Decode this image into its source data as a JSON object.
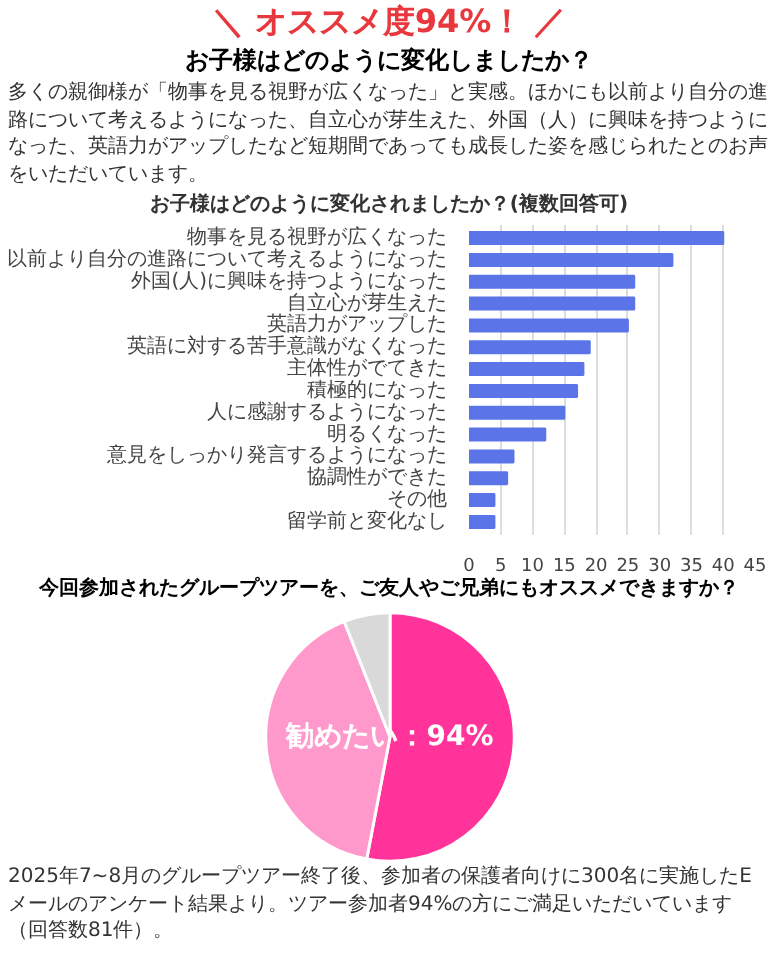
{
  "chart_data": [
    {
      "type": "bar",
      "orientation": "horizontal",
      "title": "お子様はどのように変化されましたか？(複数回答可)",
      "annotations": [
        "＼ オススメ度94%！ ／",
        "お子様はどのように変化しましたか？",
        "多くの親御様が「物事を見る視野が広くなった」と実感。ほかにも以前より自分の進路について考えるようになった、自立心が芽生えた、外国（人）に興味を持つようになった、英語力がアップしたなど短期間であっても成長した姿を感じられたとのお声をいただいています。"
      ],
      "categories": [
        "物事を見る視野が広くなった",
        "以前より自分の進路について考えるようになった",
        "外国(人)に興味を持つようになった",
        "自立心が芽生えた",
        "英語力がアップした",
        "英語に対する苦手意識がなくなった",
        "主体性がでてきた",
        "積極的になった",
        "人に感謝するようになった",
        "明るくなった",
        "意見をしっかり発言するようになった",
        "協調性ができた",
        "その他",
        "留学前と変化なし"
      ],
      "values": [
        40,
        32,
        26,
        26,
        25,
        19,
        18,
        17,
        15,
        12,
        7,
        6,
        4,
        4
      ],
      "color": "#5b74e8",
      "xlim": [
        0,
        45
      ],
      "xticks": [
        0,
        5,
        10,
        15,
        20,
        25,
        30,
        35,
        40,
        45
      ],
      "grid": "x"
    },
    {
      "type": "pie",
      "title": "今回参加されたグループツアーを、ご友人やご兄弟にもオススメできますか？",
      "categories": [
        null,
        null,
        null
      ],
      "values": [
        53,
        41,
        6
      ],
      "colors": [
        "#ff3399",
        "#ff99cc",
        "#d9d9d9"
      ],
      "annotations": [
        "勧めたい：94%",
        "2025年7~8月のグループツアー終了後、参加者の保護者向けに300名に実施したEメールのアンケート結果より。ツアー参加者94%の方にご満足いただいています（回答数81件）。"
      ]
    }
  ]
}
